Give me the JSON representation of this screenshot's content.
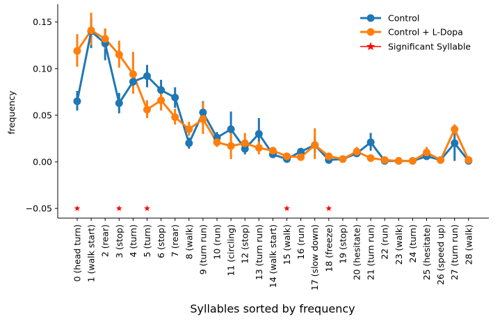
{
  "chart_data": {
    "type": "line",
    "title": "",
    "xlabel": "Syllables sorted by frequency",
    "ylabel": "frequency",
    "ylim": [
      -0.06,
      0.17
    ],
    "yticks": [
      -0.05,
      0.0,
      0.05,
      0.1,
      0.15
    ],
    "ytick_labels": [
      "−0.05",
      "0.00",
      "0.05",
      "0.10",
      "0.15"
    ],
    "categories": [
      "0 (head turn)",
      "1 (walk start)",
      "2 (rear)",
      "3 (stop)",
      "4 (turn)",
      "5 (turn)",
      "6 (stop)",
      "7 (rear)",
      "8 (walk)",
      "9 (turn run)",
      "10 (run)",
      "11 (circling)",
      "12 (stop)",
      "13 (turn run)",
      "14 (walk start)",
      "15 (walk)",
      "16 (run)",
      "17 (slow down)",
      "18 (freeze)",
      "19 (stop)",
      "20 (hesitate)",
      "21 (turn run)",
      "22 (run)",
      "23 (walk)",
      "24 (turn)",
      "25 (hesitate)",
      "26 (speed up)",
      "27 (turn run)",
      "28 (walk)"
    ],
    "series": [
      {
        "name": "Control",
        "color": "#1f77b4",
        "values": [
          0.065,
          0.14,
          0.127,
          0.063,
          0.086,
          0.092,
          0.077,
          0.069,
          0.02,
          0.053,
          0.026,
          0.035,
          0.014,
          0.03,
          0.008,
          0.003,
          0.011,
          0.018,
          0.002,
          0.003,
          0.009,
          0.021,
          0.001,
          0.001,
          0.001,
          0.006,
          0.002,
          0.02,
          0.001
        ],
        "err_low": [
          0.055,
          0.122,
          0.109,
          0.052,
          0.08,
          0.08,
          0.066,
          0.058,
          0.014,
          0.04,
          0.02,
          0.018,
          0.008,
          0.012,
          0.005,
          0.001,
          0.008,
          0.01,
          0.0,
          0.002,
          0.006,
          0.012,
          0.0,
          0.0,
          0.0,
          0.003,
          0.001,
          0.001,
          0.0
        ],
        "err_high": [
          0.076,
          0.155,
          0.143,
          0.074,
          0.093,
          0.104,
          0.088,
          0.08,
          0.026,
          0.065,
          0.032,
          0.054,
          0.02,
          0.047,
          0.012,
          0.006,
          0.014,
          0.027,
          0.005,
          0.005,
          0.012,
          0.031,
          0.002,
          0.002,
          0.002,
          0.01,
          0.003,
          0.04,
          0.002
        ]
      },
      {
        "name": "Control + L-Dopa",
        "color": "#ff7f0e",
        "values": [
          0.119,
          0.141,
          0.132,
          0.115,
          0.094,
          0.056,
          0.066,
          0.048,
          0.035,
          0.046,
          0.021,
          0.017,
          0.02,
          0.015,
          0.012,
          0.006,
          0.005,
          0.018,
          0.006,
          0.003,
          0.011,
          0.004,
          0.002,
          0.001,
          0.001,
          0.01,
          0.002,
          0.035,
          0.002
        ],
        "err_low": [
          0.102,
          0.125,
          0.121,
          0.101,
          0.073,
          0.047,
          0.055,
          0.04,
          0.028,
          0.03,
          0.016,
          0.003,
          0.01,
          0.008,
          0.009,
          0.003,
          0.003,
          0.003,
          0.003,
          0.002,
          0.006,
          0.002,
          0.001,
          0.0,
          0.0,
          0.005,
          0.001,
          0.03,
          0.0
        ],
        "err_high": [
          0.137,
          0.16,
          0.143,
          0.13,
          0.118,
          0.066,
          0.077,
          0.057,
          0.043,
          0.064,
          0.027,
          0.031,
          0.031,
          0.022,
          0.016,
          0.009,
          0.008,
          0.036,
          0.009,
          0.005,
          0.016,
          0.007,
          0.003,
          0.002,
          0.002,
          0.016,
          0.003,
          0.04,
          0.004
        ]
      }
    ],
    "significant": {
      "name": "Significant Syllable",
      "color": "#ff0000",
      "indices": [
        0,
        3,
        5,
        15,
        18
      ],
      "y": -0.05
    },
    "legend_location": "upper right",
    "grid": false
  }
}
